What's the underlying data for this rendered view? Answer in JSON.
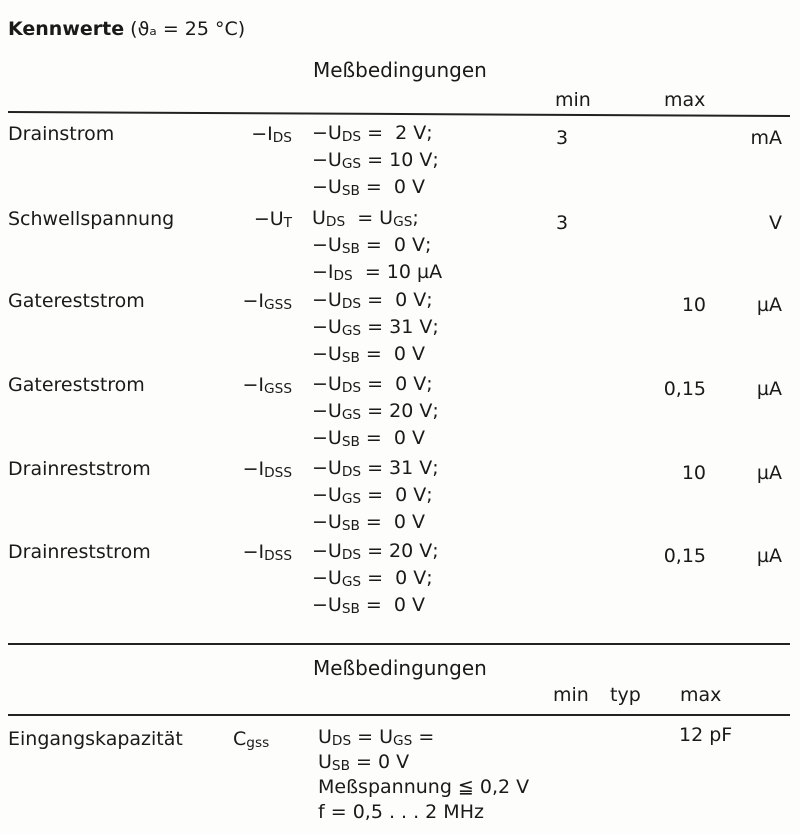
{
  "title": {
    "bold": "Kennwerte",
    "rest": "(ϑₐ = 25 °C)"
  },
  "table1": {
    "conditions_header": "Meßbedingungen",
    "min_header": "min",
    "max_header": "max",
    "rows": [
      {
        "name": "Drainstrom",
        "symbol": [
          {
            "t": "−I"
          },
          {
            "s": "DS"
          }
        ],
        "conditions": [
          [
            {
              "t": "−U"
            },
            {
              "s": "DS"
            },
            {
              "t": " =  2 V;"
            }
          ],
          [
            {
              "t": "−U"
            },
            {
              "s": "GS"
            },
            {
              "t": " = 10 V;"
            }
          ],
          [
            {
              "t": "−U"
            },
            {
              "s": "SB"
            },
            {
              "t": " =  0 V"
            }
          ]
        ],
        "min": "3",
        "max": "",
        "unit": "mA"
      },
      {
        "name": "Schwellspannung",
        "symbol": [
          {
            "t": "−U"
          },
          {
            "s": "T"
          }
        ],
        "conditions": [
          [
            {
              "t": "U"
            },
            {
              "s": "DS"
            },
            {
              "t": "  = U"
            },
            {
              "s": "GS"
            },
            {
              "t": ";"
            }
          ],
          [
            {
              "t": "−U"
            },
            {
              "s": "SB"
            },
            {
              "t": " =  0 V;"
            }
          ],
          [
            {
              "t": "−I"
            },
            {
              "s": "DS"
            },
            {
              "t": "  = 10 µA"
            }
          ]
        ],
        "min": "3",
        "max": "",
        "unit": "V"
      },
      {
        "name": "Gatereststrom",
        "symbol": [
          {
            "t": "−I"
          },
          {
            "s": "GSS"
          }
        ],
        "conditions": [
          [
            {
              "t": "−U"
            },
            {
              "s": "DS"
            },
            {
              "t": " =  0 V;"
            }
          ],
          [
            {
              "t": "−U"
            },
            {
              "s": "GS"
            },
            {
              "t": " = 31 V;"
            }
          ],
          [
            {
              "t": "−U"
            },
            {
              "s": "SB"
            },
            {
              "t": " =  0 V"
            }
          ]
        ],
        "min": "",
        "max": "10",
        "unit": "µA"
      },
      {
        "name": "Gatereststrom",
        "symbol": [
          {
            "t": "−I"
          },
          {
            "s": "GSS"
          }
        ],
        "conditions": [
          [
            {
              "t": "−U"
            },
            {
              "s": "DS"
            },
            {
              "t": " =  0 V;"
            }
          ],
          [
            {
              "t": "−U"
            },
            {
              "s": "GS"
            },
            {
              "t": " = 20 V;"
            }
          ],
          [
            {
              "t": "−U"
            },
            {
              "s": "SB"
            },
            {
              "t": " =  0 V"
            }
          ]
        ],
        "min": "",
        "max": "0,15",
        "unit": "µA"
      },
      {
        "name": "Drainreststrom",
        "symbol": [
          {
            "t": "−I"
          },
          {
            "s": "DSS"
          }
        ],
        "conditions": [
          [
            {
              "t": "−U"
            },
            {
              "s": "DS"
            },
            {
              "t": " = 31 V;"
            }
          ],
          [
            {
              "t": "−U"
            },
            {
              "s": "GS"
            },
            {
              "t": " =  0 V;"
            }
          ],
          [
            {
              "t": "−U"
            },
            {
              "s": "SB"
            },
            {
              "t": " =  0 V"
            }
          ]
        ],
        "min": "",
        "max": "10",
        "unit": "µA"
      },
      {
        "name": "Drainreststrom",
        "symbol": [
          {
            "t": "−I"
          },
          {
            "s": "DSS"
          }
        ],
        "conditions": [
          [
            {
              "t": "−U"
            },
            {
              "s": "DS"
            },
            {
              "t": " = 20 V;"
            }
          ],
          [
            {
              "t": "−U"
            },
            {
              "s": "GS"
            },
            {
              "t": " =  0 V;"
            }
          ],
          [
            {
              "t": "−U"
            },
            {
              "s": "SB"
            },
            {
              "t": " =  0 V"
            }
          ]
        ],
        "min": "",
        "max": "0,15",
        "unit": "µA"
      }
    ]
  },
  "table2": {
    "conditions_header": "Meßbedingungen",
    "min_header": "min",
    "typ_header": "typ",
    "max_header": "max",
    "rows": [
      {
        "name": "Eingangskapazität",
        "symbol": [
          {
            "t": "C"
          },
          {
            "s": "gss"
          }
        ],
        "conditions": [
          [
            {
              "t": "U"
            },
            {
              "s": "DS"
            },
            {
              "t": " = U"
            },
            {
              "s": "GS"
            },
            {
              "t": " ="
            }
          ],
          [
            {
              "t": "U"
            },
            {
              "s": "SB"
            },
            {
              "t": " = 0 V"
            }
          ],
          [
            {
              "t": "Meßspannung ≦ 0,2 V"
            }
          ],
          [
            {
              "t": "f = 0,5 . . . 2 MHz"
            }
          ]
        ],
        "max": "12 pF"
      }
    ]
  }
}
